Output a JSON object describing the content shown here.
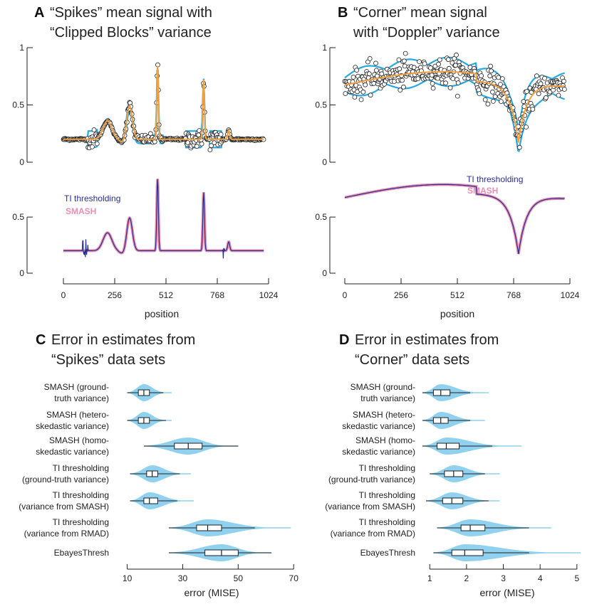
{
  "colors": {
    "obs_fill": "#ffffff",
    "obs_stroke": "#222222",
    "band": "#29a8e0",
    "mean": "#f0a040",
    "ti": "#2b2f8f",
    "smash": "#e98fb0",
    "violin": "#8fd1ee",
    "box": "#ffffff"
  },
  "panels": {
    "A": {
      "letter": "A",
      "title_line1": "“Spikes” mean signal with",
      "title_line2": "“Clipped Blocks” variance"
    },
    "B": {
      "letter": "B",
      "title_line1": "“Corner” mean signal",
      "title_line2": "with “Doppler” variance"
    },
    "C": {
      "letter": "C",
      "title_line1": "Error in estimates from",
      "title_line2": "“Spikes” data sets"
    },
    "D": {
      "letter": "D",
      "title_line1": "Error in estimates from",
      "title_line2": "“Corner” data sets"
    }
  },
  "legend": {
    "ti": "TI thresholding",
    "smash": "SMASH"
  },
  "chart_data": [
    {
      "panel": "A",
      "type": "scatter",
      "title": "“Spikes” mean signal with “Clipped Blocks” variance",
      "xlabel": "position",
      "xticks": [
        0,
        256,
        512,
        768,
        1024
      ],
      "xlim": [
        0,
        1024
      ],
      "top": {
        "ylim": [
          0,
          1
        ],
        "yticks": [
          0,
          0.5,
          1
        ],
        "ytick_labels": [
          "0",
          "0.5",
          "1"
        ],
        "series": [
          "observations",
          "mean signal",
          "variance band"
        ]
      },
      "bottom": {
        "ylim": [
          0,
          0.9
        ],
        "yticks": [
          0,
          0.5
        ],
        "ytick_labels": [
          "0",
          "0.5"
        ],
        "series": [
          {
            "name": "TI thresholding"
          },
          {
            "name": "SMASH"
          }
        ]
      },
      "mean_signal": {
        "baseline": 0.2,
        "x": [
          0,
          100,
          130,
          180,
          230,
          260,
          300,
          330,
          360,
          400,
          450,
          470,
          490,
          520,
          600,
          660,
          680,
          700,
          720,
          760,
          820,
          830,
          840,
          900,
          1000
        ],
        "y": [
          0.2,
          0.2,
          0.22,
          0.28,
          0.38,
          0.3,
          0.27,
          0.49,
          0.3,
          0.2,
          0.19,
          0.84,
          0.2,
          0.19,
          0.2,
          0.19,
          0.18,
          0.72,
          0.2,
          0.19,
          0.2,
          0.27,
          0.2,
          0.2,
          0.2
        ]
      }
    },
    {
      "panel": "B",
      "type": "scatter",
      "title": "“Corner” mean signal with “Doppler” variance",
      "xlabel": "position",
      "xticks": [
        0,
        256,
        512,
        768,
        1024
      ],
      "xlim": [
        0,
        1024
      ],
      "top": {
        "ylim": [
          0,
          1
        ],
        "yticks": [
          0,
          0.5,
          1
        ],
        "ytick_labels": [
          "0",
          "0.5",
          "1"
        ]
      },
      "bottom": {
        "ylim": [
          0,
          0.9
        ],
        "yticks": [
          0,
          0.5
        ],
        "ytick_labels": [
          "0",
          "0.5"
        ],
        "series": [
          {
            "name": "TI thresholding"
          },
          {
            "name": "SMASH"
          }
        ]
      },
      "mean_signal": {
        "x": [
          0,
          100,
          200,
          300,
          380,
          450,
          520,
          600,
          680,
          740,
          790,
          830,
          880,
          940,
          1000
        ],
        "y": [
          0.68,
          0.68,
          0.7,
          0.75,
          0.79,
          0.74,
          0.68,
          0.64,
          0.58,
          0.45,
          0.22,
          0.4,
          0.58,
          0.65,
          0.67
        ]
      }
    },
    {
      "panel": "C",
      "type": "violin",
      "title": "Error in estimates from “Spikes” data sets",
      "xlabel": "error (MISE)",
      "xlim": [
        6,
        72
      ],
      "xticks": [
        10,
        30,
        50,
        70
      ],
      "categories": [
        {
          "l1": "SMASH (ground-",
          "l2": "truth variance)"
        },
        {
          "l1": "SMASH (hetero-",
          "l2": "skedastic variance)"
        },
        {
          "l1": "SMASH (homo-",
          "l2": "skedastic variance)"
        },
        {
          "l1": "TI thresholding",
          "l2": "(ground-truth variance)"
        },
        {
          "l1": "TI thresholding",
          "l2": "(variance from SMASH)"
        },
        {
          "l1": "TI thresholding",
          "l2": "(variance from RMAD)"
        },
        {
          "l1": "",
          "l2": "EbayesThresh"
        }
      ],
      "stats": [
        {
          "min": 10,
          "q1": 14,
          "median": 16,
          "q3": 18,
          "max": 23,
          "vmax": 26
        },
        {
          "min": 10,
          "q1": 14,
          "median": 16,
          "q3": 18,
          "max": 24,
          "vmax": 26
        },
        {
          "min": 16,
          "q1": 27,
          "median": 32,
          "q3": 37,
          "max": 50,
          "vmax": 50
        },
        {
          "min": 11,
          "q1": 17,
          "median": 19,
          "q3": 21,
          "max": 29,
          "vmax": 33
        },
        {
          "min": 11,
          "q1": 16,
          "median": 18,
          "q3": 21,
          "max": 28,
          "vmax": 34
        },
        {
          "min": 25,
          "q1": 35,
          "median": 39,
          "q3": 44,
          "max": 56,
          "vmax": 69
        },
        {
          "min": 25,
          "q1": 38,
          "median": 44,
          "q3": 50,
          "max": 62,
          "vmax": 62
        }
      ]
    },
    {
      "panel": "D",
      "type": "violin",
      "title": "Error in estimates from “Corner” data sets",
      "xlabel": "error (MISE)",
      "xlim": [
        0.55,
        5.1
      ],
      "xticks": [
        1,
        2,
        3,
        4,
        5
      ],
      "categories": [
        {
          "l1": "SMASH (ground-",
          "l2": "truth variance)"
        },
        {
          "l1": "SMASH (hetero-",
          "l2": "skedastic variance)"
        },
        {
          "l1": "SMASH (homo-",
          "l2": "skedastic variance)"
        },
        {
          "l1": "TI thresholding",
          "l2": "(ground-truth variance)"
        },
        {
          "l1": "TI thresholding",
          "l2": "(variance from SMASH)"
        },
        {
          "l1": "TI thresholding",
          "l2": "(variance from RMAD)"
        },
        {
          "l1": "",
          "l2": "EbayesThresh"
        }
      ],
      "stats": [
        {
          "min": 0.8,
          "q1": 1.1,
          "median": 1.3,
          "q3": 1.55,
          "max": 2.1,
          "vmax": 2.6
        },
        {
          "min": 0.8,
          "q1": 1.1,
          "median": 1.3,
          "q3": 1.5,
          "max": 2.1,
          "vmax": 2.5
        },
        {
          "min": 0.8,
          "q1": 1.2,
          "median": 1.45,
          "q3": 1.8,
          "max": 2.7,
          "vmax": 3.5
        },
        {
          "min": 1.0,
          "q1": 1.4,
          "median": 1.65,
          "q3": 1.9,
          "max": 2.5,
          "vmax": 2.9
        },
        {
          "min": 0.9,
          "q1": 1.35,
          "median": 1.6,
          "q3": 1.9,
          "max": 2.6,
          "vmax": 2.9
        },
        {
          "min": 1.2,
          "q1": 1.85,
          "median": 2.1,
          "q3": 2.5,
          "max": 3.7,
          "vmax": 4.3
        },
        {
          "min": 1.1,
          "q1": 1.6,
          "median": 1.95,
          "q3": 2.45,
          "max": 3.7,
          "vmax": 5.1
        }
      ]
    }
  ]
}
